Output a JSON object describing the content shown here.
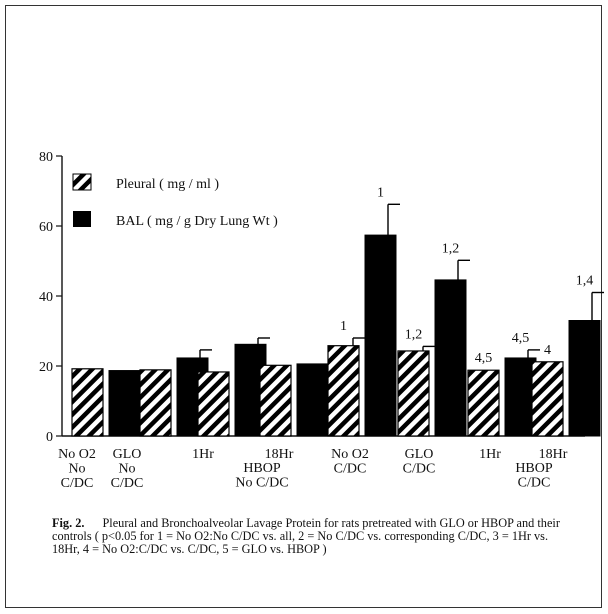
{
  "chart_data": {
    "type": "bar",
    "ylim": [
      0,
      80
    ],
    "yticks": [
      0,
      20,
      40,
      60,
      80
    ],
    "legend_placement": "top-left",
    "series": [
      {
        "name": "Pleural ( mg / ml )",
        "pattern": "hatched"
      },
      {
        "name": "BAL ( mg / g Dry Lung Wt )",
        "pattern": "solid",
        "color": "#000000"
      }
    ],
    "groups": [
      {
        "label": [
          "No O2",
          "No",
          "C/DC"
        ],
        "pleural": 19.2,
        "pleural_err": 0,
        "pleural_note": "",
        "bal": 18.7,
        "bal_err": 0,
        "bal_note": ""
      },
      {
        "label": [
          "GLO",
          "No",
          "C/DC"
        ],
        "pleural": 18.9,
        "pleural_err": 0,
        "pleural_note": "",
        "bal": 22.3,
        "bal_err": 2.3,
        "bal_note": ""
      },
      {
        "label": [
          "1Hr"
        ],
        "pleural": 18.3,
        "pleural_err": 0,
        "pleural_note": "",
        "bal": 26.2,
        "bal_err": 1.8,
        "bal_note": ""
      },
      {
        "label": [
          "18Hr"
        ],
        "pleural": 20.2,
        "pleural_err": 0,
        "pleural_note": "",
        "bal": 20.6,
        "bal_err": 0,
        "bal_note": ""
      },
      {
        "label": [
          "No O2",
          "C/DC"
        ],
        "pleural": 25.8,
        "pleural_err": 2.2,
        "pleural_note": "1",
        "bal": 57.4,
        "bal_err": 8.8,
        "bal_note": "1"
      },
      {
        "label": [
          "GLO",
          "C/DC"
        ],
        "pleural": 24.3,
        "pleural_err": 1.3,
        "pleural_note": "1,2",
        "bal": 44.6,
        "bal_err": 5.6,
        "bal_note": "1,2"
      },
      {
        "label": [
          "1Hr"
        ],
        "pleural": 18.8,
        "pleural_err": 0,
        "pleural_note": "4,5",
        "bal": 22.3,
        "bal_err": 2.3,
        "bal_note": "4,5"
      },
      {
        "label": [
          "18Hr"
        ],
        "pleural": 21.2,
        "pleural_err": 0,
        "pleural_note": "4",
        "bal": 33.0,
        "bal_err": 8.0,
        "bal_note": "1,4"
      }
    ],
    "group_labels": [
      {
        "lines": [
          "HBOP",
          "No C/DC"
        ]
      },
      {
        "lines": [
          "HBOP",
          "C/DC"
        ]
      }
    ]
  },
  "caption": {
    "label": "Fig. 2.",
    "text": "Pleural and Bronchoalveolar Lavage Protein for rats pretreated with GLO or HBOP and their controls ( p<0.05 for 1 = No O2:No C/DC vs. all, 2 = No C/DC vs. corresponding C/DC, 3 = 1Hr vs. 18Hr, 4 = No O2:C/DC vs. C/DC, 5 = GLO vs. HBOP )"
  }
}
